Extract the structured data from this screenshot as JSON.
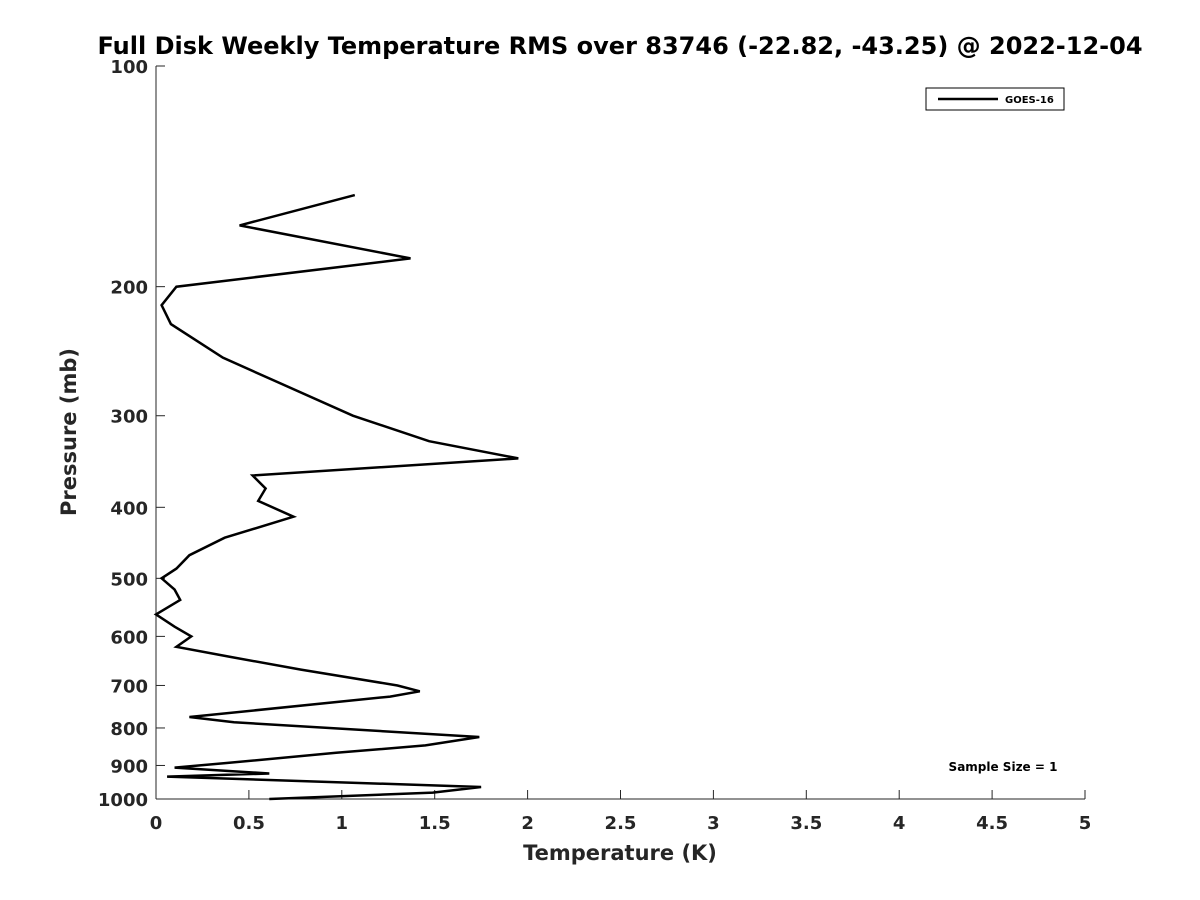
{
  "chart_data": {
    "type": "line",
    "title": "Full Disk Weekly Temperature RMS over 83746 (-22.82, -43.25) @ 2022-12-04",
    "xlabel": "Temperature (K)",
    "ylabel": "Pressure (mb)",
    "xlim": [
      0,
      5
    ],
    "ylim": [
      100,
      1000
    ],
    "yscale": "log",
    "xreverse": false,
    "yreverse": true,
    "grid": false,
    "x_ticks": [
      0,
      0.5,
      1,
      1.5,
      2,
      2.5,
      3,
      3.5,
      4,
      4.5,
      5
    ],
    "x_tick_labels": [
      "0",
      "0.5",
      "1",
      "1.5",
      "2",
      "2.5",
      "3",
      "3.5",
      "4",
      "4.5",
      "5"
    ],
    "y_ticks": [
      100,
      200,
      300,
      400,
      500,
      600,
      700,
      800,
      900,
      1000
    ],
    "y_tick_labels": [
      "100",
      "200",
      "300",
      "400",
      "500",
      "600",
      "700",
      "800",
      "900",
      "1000"
    ],
    "legend": {
      "position": "top-right",
      "entries": [
        "GOES-16"
      ]
    },
    "annotation": "Sample Size = 1",
    "series": [
      {
        "name": "GOES-16",
        "color": "#000000",
        "points": [
          [
            1.07,
            150
          ],
          [
            0.45,
            165
          ],
          [
            1.37,
            183
          ],
          [
            0.11,
            200
          ],
          [
            0.03,
            212
          ],
          [
            0.08,
            225
          ],
          [
            0.36,
            250
          ],
          [
            1.06,
            300
          ],
          [
            1.47,
            325
          ],
          [
            1.95,
            343
          ],
          [
            0.52,
            362
          ],
          [
            0.59,
            377
          ],
          [
            0.55,
            392
          ],
          [
            0.74,
            412
          ],
          [
            0.37,
            440
          ],
          [
            0.18,
            465
          ],
          [
            0.11,
            485
          ],
          [
            0.03,
            500
          ],
          [
            0.1,
            518
          ],
          [
            0.13,
            535
          ],
          [
            0.0,
            560
          ],
          [
            0.1,
            582
          ],
          [
            0.19,
            600
          ],
          [
            0.11,
            620
          ],
          [
            0.4,
            640
          ],
          [
            0.78,
            666
          ],
          [
            1.3,
            700
          ],
          [
            1.42,
            713
          ],
          [
            1.26,
            725
          ],
          [
            0.18,
            773
          ],
          [
            0.42,
            786
          ],
          [
            1.74,
            823
          ],
          [
            1.45,
            845
          ],
          [
            0.97,
            865
          ],
          [
            0.38,
            893
          ],
          [
            0.1,
            906
          ],
          [
            0.61,
            923
          ],
          [
            0.06,
            932
          ],
          [
            1.75,
            963
          ],
          [
            1.49,
            980
          ],
          [
            0.61,
            1000
          ]
        ]
      }
    ]
  }
}
